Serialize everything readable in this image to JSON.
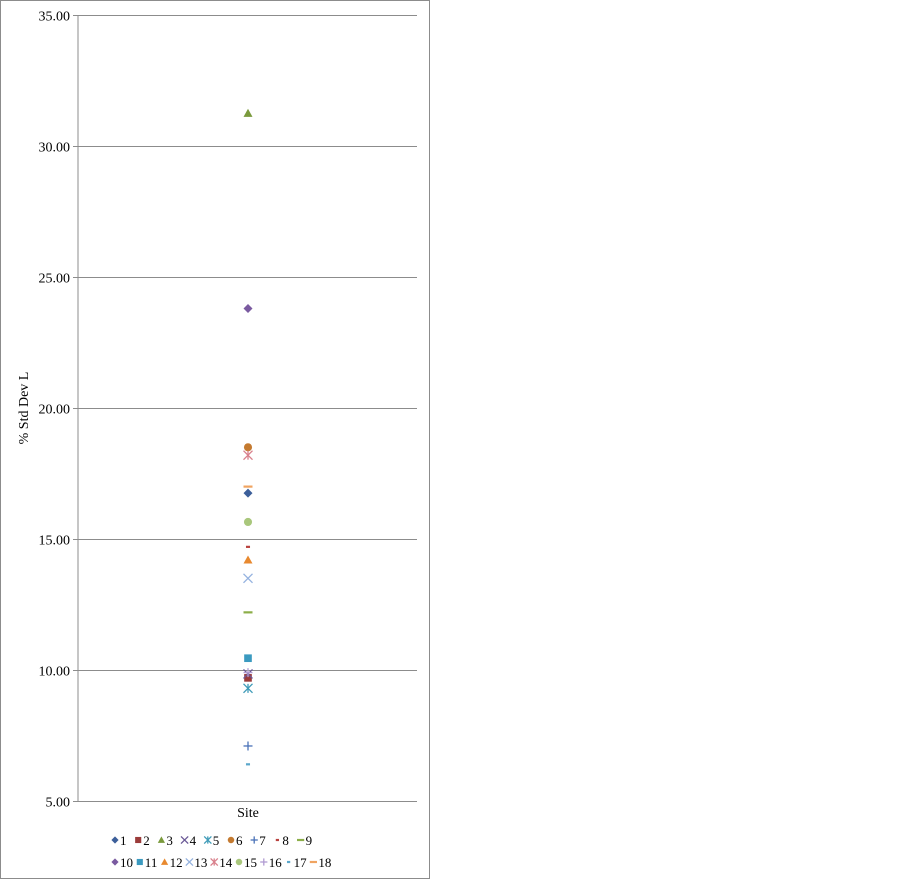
{
  "chart_data": {
    "type": "scatter",
    "title": "",
    "xlabel": "Site",
    "ylabel": "% Std Dev L",
    "ylim": [
      5,
      35
    ],
    "yticks": [
      5,
      10,
      15,
      20,
      25,
      30,
      35
    ],
    "ytick_labels": [
      "5.00",
      "10.00",
      "15.00",
      "20.00",
      "25.00",
      "30.00",
      "35.00"
    ],
    "grid": true,
    "legend_position": "bottom",
    "series": [
      {
        "name": "1",
        "marker": "diamond",
        "color": "#3c5f9a",
        "values": [
          16.75
        ]
      },
      {
        "name": "2",
        "marker": "square",
        "color": "#9b3b3a",
        "values": [
          9.7
        ]
      },
      {
        "name": "3",
        "marker": "triangle",
        "color": "#7a9a3c",
        "values": [
          31.25
        ]
      },
      {
        "name": "4",
        "marker": "x",
        "color": "#6a5896",
        "values": [
          9.85
        ]
      },
      {
        "name": "5",
        "marker": "star",
        "color": "#3f9bb8",
        "values": [
          9.3
        ]
      },
      {
        "name": "6",
        "marker": "circle",
        "color": "#c47a30",
        "values": [
          18.5
        ]
      },
      {
        "name": "7",
        "marker": "plus",
        "color": "#4a72b8",
        "values": [
          7.1
        ]
      },
      {
        "name": "8",
        "marker": "dash",
        "color": "#b9423f",
        "values": [
          14.7
        ]
      },
      {
        "name": "9",
        "marker": "bar",
        "color": "#8cae48",
        "values": [
          12.2
        ]
      },
      {
        "name": "10",
        "marker": "diamond",
        "color": "#7a5aa0",
        "values": [
          23.8
        ]
      },
      {
        "name": "11",
        "marker": "square",
        "color": "#3b9ac0",
        "values": [
          10.45
        ]
      },
      {
        "name": "12",
        "marker": "triangle",
        "color": "#e8892f",
        "values": [
          14.2
        ]
      },
      {
        "name": "13",
        "marker": "x",
        "color": "#95b2df",
        "values": [
          13.5
        ]
      },
      {
        "name": "14",
        "marker": "star",
        "color": "#d9808c",
        "values": [
          18.2
        ]
      },
      {
        "name": "15",
        "marker": "circle",
        "color": "#a9c77c",
        "values": [
          15.65
        ]
      },
      {
        "name": "16",
        "marker": "plus",
        "color": "#b09bd2",
        "values": [
          9.9
        ]
      },
      {
        "name": "17",
        "marker": "dash",
        "color": "#5ba7cb",
        "values": [
          6.4
        ]
      },
      {
        "name": "18",
        "marker": "bar",
        "color": "#f0a461",
        "values": [
          17.0
        ]
      }
    ]
  }
}
